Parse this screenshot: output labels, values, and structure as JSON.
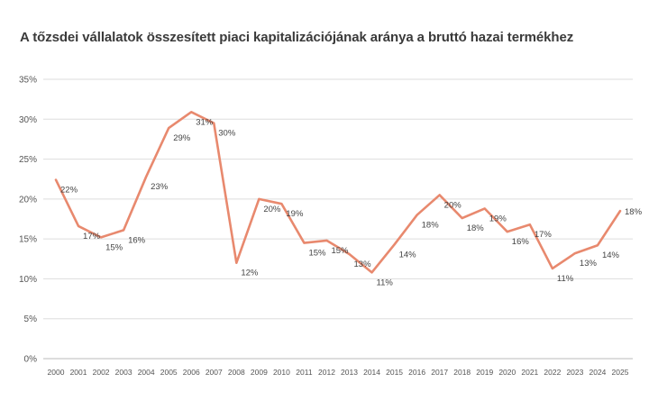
{
  "chart_data": {
    "type": "line",
    "title": "A tőzsdei vállalatok összesített piaci kapitalizációjának aránya a bruttó hazai termékhez",
    "xlabel": "",
    "ylabel": "",
    "x": [
      "2000",
      "2001",
      "2002",
      "2003",
      "2004",
      "2005",
      "2006",
      "2007",
      "2008",
      "2009",
      "2010",
      "2011",
      "2012",
      "2013",
      "2014",
      "2015",
      "2016",
      "2017",
      "2018",
      "2019",
      "2020",
      "2021",
      "2022",
      "2023",
      "2024",
      "2025"
    ],
    "series": [
      {
        "values": [
          22.4,
          16.6,
          15.2,
          16.1,
          22.8,
          28.9,
          30.9,
          29.5,
          12.0,
          20.0,
          19.4,
          14.5,
          14.8,
          13.1,
          10.8,
          14.3,
          18.0,
          20.5,
          17.6,
          18.8,
          15.9,
          16.8,
          11.3,
          13.2,
          14.2,
          18.5
        ]
      }
    ],
    "data_labels": [
      "22%",
      "17%",
      "15%",
      "16%",
      "23%",
      "29%",
      "31%",
      "30%",
      "12%",
      "20%",
      "19%",
      "15%",
      "15%",
      "13%",
      "11%",
      "14%",
      "18%",
      "20%",
      "18%",
      "19%",
      "16%",
      "17%",
      "11%",
      "13%",
      "14%",
      "18%"
    ],
    "yticks": [
      "0%",
      "5%",
      "10%",
      "15%",
      "20%",
      "25%",
      "30%",
      "35%"
    ],
    "ylim": [
      0,
      35
    ],
    "grid": true,
    "legend": "none",
    "colors": {
      "line": "#E8896E",
      "grid": "#DDDDDD",
      "baseline": "#BBBBBB"
    }
  }
}
